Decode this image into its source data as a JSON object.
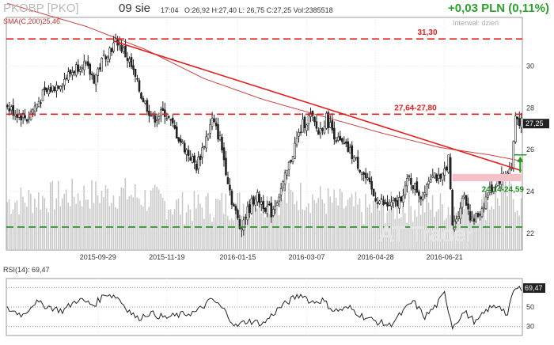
{
  "header": {
    "symbol": "PKOBP [PKO]",
    "date": "09 sie",
    "time": "17:04",
    "ohlc": "O:26,92  H:27,40  L: 26,75  C:27,25  Vol:2385518",
    "change": "+0,03 PLN (0,11%)",
    "interval": "Interwał: dzień",
    "sma_label": "SMA(C,200)25,46",
    "rsi_label": "RSI(14): 69,47",
    "watermark": "AT Trader"
  },
  "colors": {
    "candle": "#222222",
    "volume": "#c8c8c8",
    "resistance": "#e02020",
    "support": "#1e8a1e",
    "sma": "#d04040",
    "gap_zone": "#f6c0c8",
    "up_arrow": "#1e9a1e",
    "rsi": "#222222"
  },
  "chart_data": [
    {
      "type": "candlestick",
      "name": "price",
      "x_tick_labels": [
        "2015-09-29",
        "2015-11-19",
        "2016-01-15",
        "2016-03-07",
        "2016-04-28",
        "2016-06-21"
      ],
      "x_tick_index": [
        46,
        81,
        117,
        152,
        187,
        222
      ],
      "n_sessions": 250,
      "ylim": [
        21.2,
        31.8
      ],
      "y_ticks": [
        22,
        24,
        26,
        28,
        30
      ],
      "last_close": 27.25,
      "last_close_label": "27,25",
      "sma200_last": 25.46,
      "anchors": [
        [
          0,
          28.0
        ],
        [
          10,
          27.5
        ],
        [
          18,
          28.6
        ],
        [
          28,
          29.3
        ],
        [
          38,
          30.2
        ],
        [
          44,
          29.4
        ],
        [
          50,
          30.6
        ],
        [
          56,
          31.2
        ],
        [
          62,
          30.2
        ],
        [
          68,
          28.6
        ],
        [
          74,
          27.5
        ],
        [
          80,
          27.8
        ],
        [
          88,
          26.4
        ],
        [
          96,
          25.2
        ],
        [
          104,
          27.4
        ],
        [
          108,
          26.5
        ],
        [
          114,
          23.6
        ],
        [
          118,
          22.3
        ],
        [
          126,
          23.8
        ],
        [
          134,
          23.0
        ],
        [
          140,
          24.3
        ],
        [
          146,
          26.2
        ],
        [
          150,
          27.2
        ],
        [
          154,
          27.6
        ],
        [
          158,
          26.8
        ],
        [
          162,
          27.5
        ],
        [
          168,
          26.4
        ],
        [
          174,
          25.9
        ],
        [
          180,
          25.0
        ],
        [
          186,
          23.8
        ],
        [
          192,
          23.3
        ],
        [
          198,
          23.4
        ],
        [
          204,
          24.6
        ],
        [
          210,
          23.8
        ],
        [
          216,
          25.0
        ],
        [
          220,
          24.4
        ],
        [
          224,
          25.6
        ],
        [
          226,
          22.2
        ],
        [
          232,
          23.9
        ],
        [
          236,
          22.5
        ],
        [
          240,
          23.0
        ],
        [
          244,
          23.9
        ],
        [
          248,
          24.4
        ],
        [
          252,
          24.8
        ],
        [
          256,
          25.1
        ],
        [
          258,
          27.6
        ],
        [
          261,
          27.25
        ]
      ],
      "volume_anchors": [
        [
          0,
          23.6
        ],
        [
          30,
          23.9
        ],
        [
          60,
          24.0
        ],
        [
          90,
          23.3
        ],
        [
          120,
          23.5
        ],
        [
          150,
          23.9
        ],
        [
          180,
          23.2
        ],
        [
          210,
          23.4
        ],
        [
          240,
          23.3
        ],
        [
          255,
          24.1
        ],
        [
          261,
          23.4
        ]
      ],
      "annotations": [
        {
          "kind": "hline",
          "y": 31.3,
          "label": "31,30",
          "color": "resistance"
        },
        {
          "kind": "hline",
          "y": 27.7,
          "label": "27,64-27,80",
          "color": "resistance"
        },
        {
          "kind": "hline",
          "y": 22.3,
          "label": "",
          "color": "support"
        },
        {
          "kind": "trendline",
          "from": [
            54,
            31.2
          ],
          "to": [
            261,
            25.0
          ],
          "color": "resistance"
        },
        {
          "kind": "zone",
          "x_from": 226,
          "x_to": 261,
          "y_low": 24.14,
          "y_high": 24.59,
          "label": "24,14-24,59",
          "color": "gap_zone"
        },
        {
          "kind": "arrow_up",
          "x": 258,
          "y_from": 24.9,
          "y_to": 25.6,
          "color": "up_arrow"
        }
      ],
      "sma200": [
        [
          0,
          33.0
        ],
        [
          40,
          31.9
        ],
        [
          70,
          30.8
        ],
        [
          100,
          29.4
        ],
        [
          130,
          28.4
        ],
        [
          160,
          27.6
        ],
        [
          190,
          26.8
        ],
        [
          220,
          26.1
        ],
        [
          245,
          25.75
        ],
        [
          261,
          25.46
        ]
      ]
    },
    {
      "type": "line",
      "name": "RSI(14)",
      "ylim": [
        24,
        76
      ],
      "y_ticks": [
        30,
        50,
        70
      ],
      "last_value": 69.47,
      "last_value_label": "69,47",
      "anchors": [
        [
          0,
          48
        ],
        [
          8,
          42
        ],
        [
          14,
          55
        ],
        [
          20,
          51
        ],
        [
          28,
          46
        ],
        [
          36,
          58
        ],
        [
          44,
          52
        ],
        [
          50,
          64
        ],
        [
          56,
          60
        ],
        [
          60,
          50
        ],
        [
          66,
          38
        ],
        [
          72,
          44
        ],
        [
          80,
          39
        ],
        [
          88,
          42
        ],
        [
          96,
          45
        ],
        [
          104,
          58
        ],
        [
          110,
          47
        ],
        [
          116,
          30
        ],
        [
          122,
          36
        ],
        [
          130,
          33
        ],
        [
          138,
          49
        ],
        [
          146,
          60
        ],
        [
          150,
          63
        ],
        [
          154,
          55
        ],
        [
          160,
          57
        ],
        [
          166,
          46
        ],
        [
          174,
          49
        ],
        [
          180,
          41
        ],
        [
          186,
          36
        ],
        [
          194,
          31
        ],
        [
          200,
          43
        ],
        [
          206,
          56
        ],
        [
          212,
          40
        ],
        [
          218,
          52
        ],
        [
          222,
          64
        ],
        [
          226,
          30
        ],
        [
          232,
          45
        ],
        [
          238,
          34
        ],
        [
          244,
          48
        ],
        [
          250,
          52
        ],
        [
          254,
          41
        ],
        [
          257,
          67
        ],
        [
          261,
          69.47
        ]
      ]
    }
  ]
}
